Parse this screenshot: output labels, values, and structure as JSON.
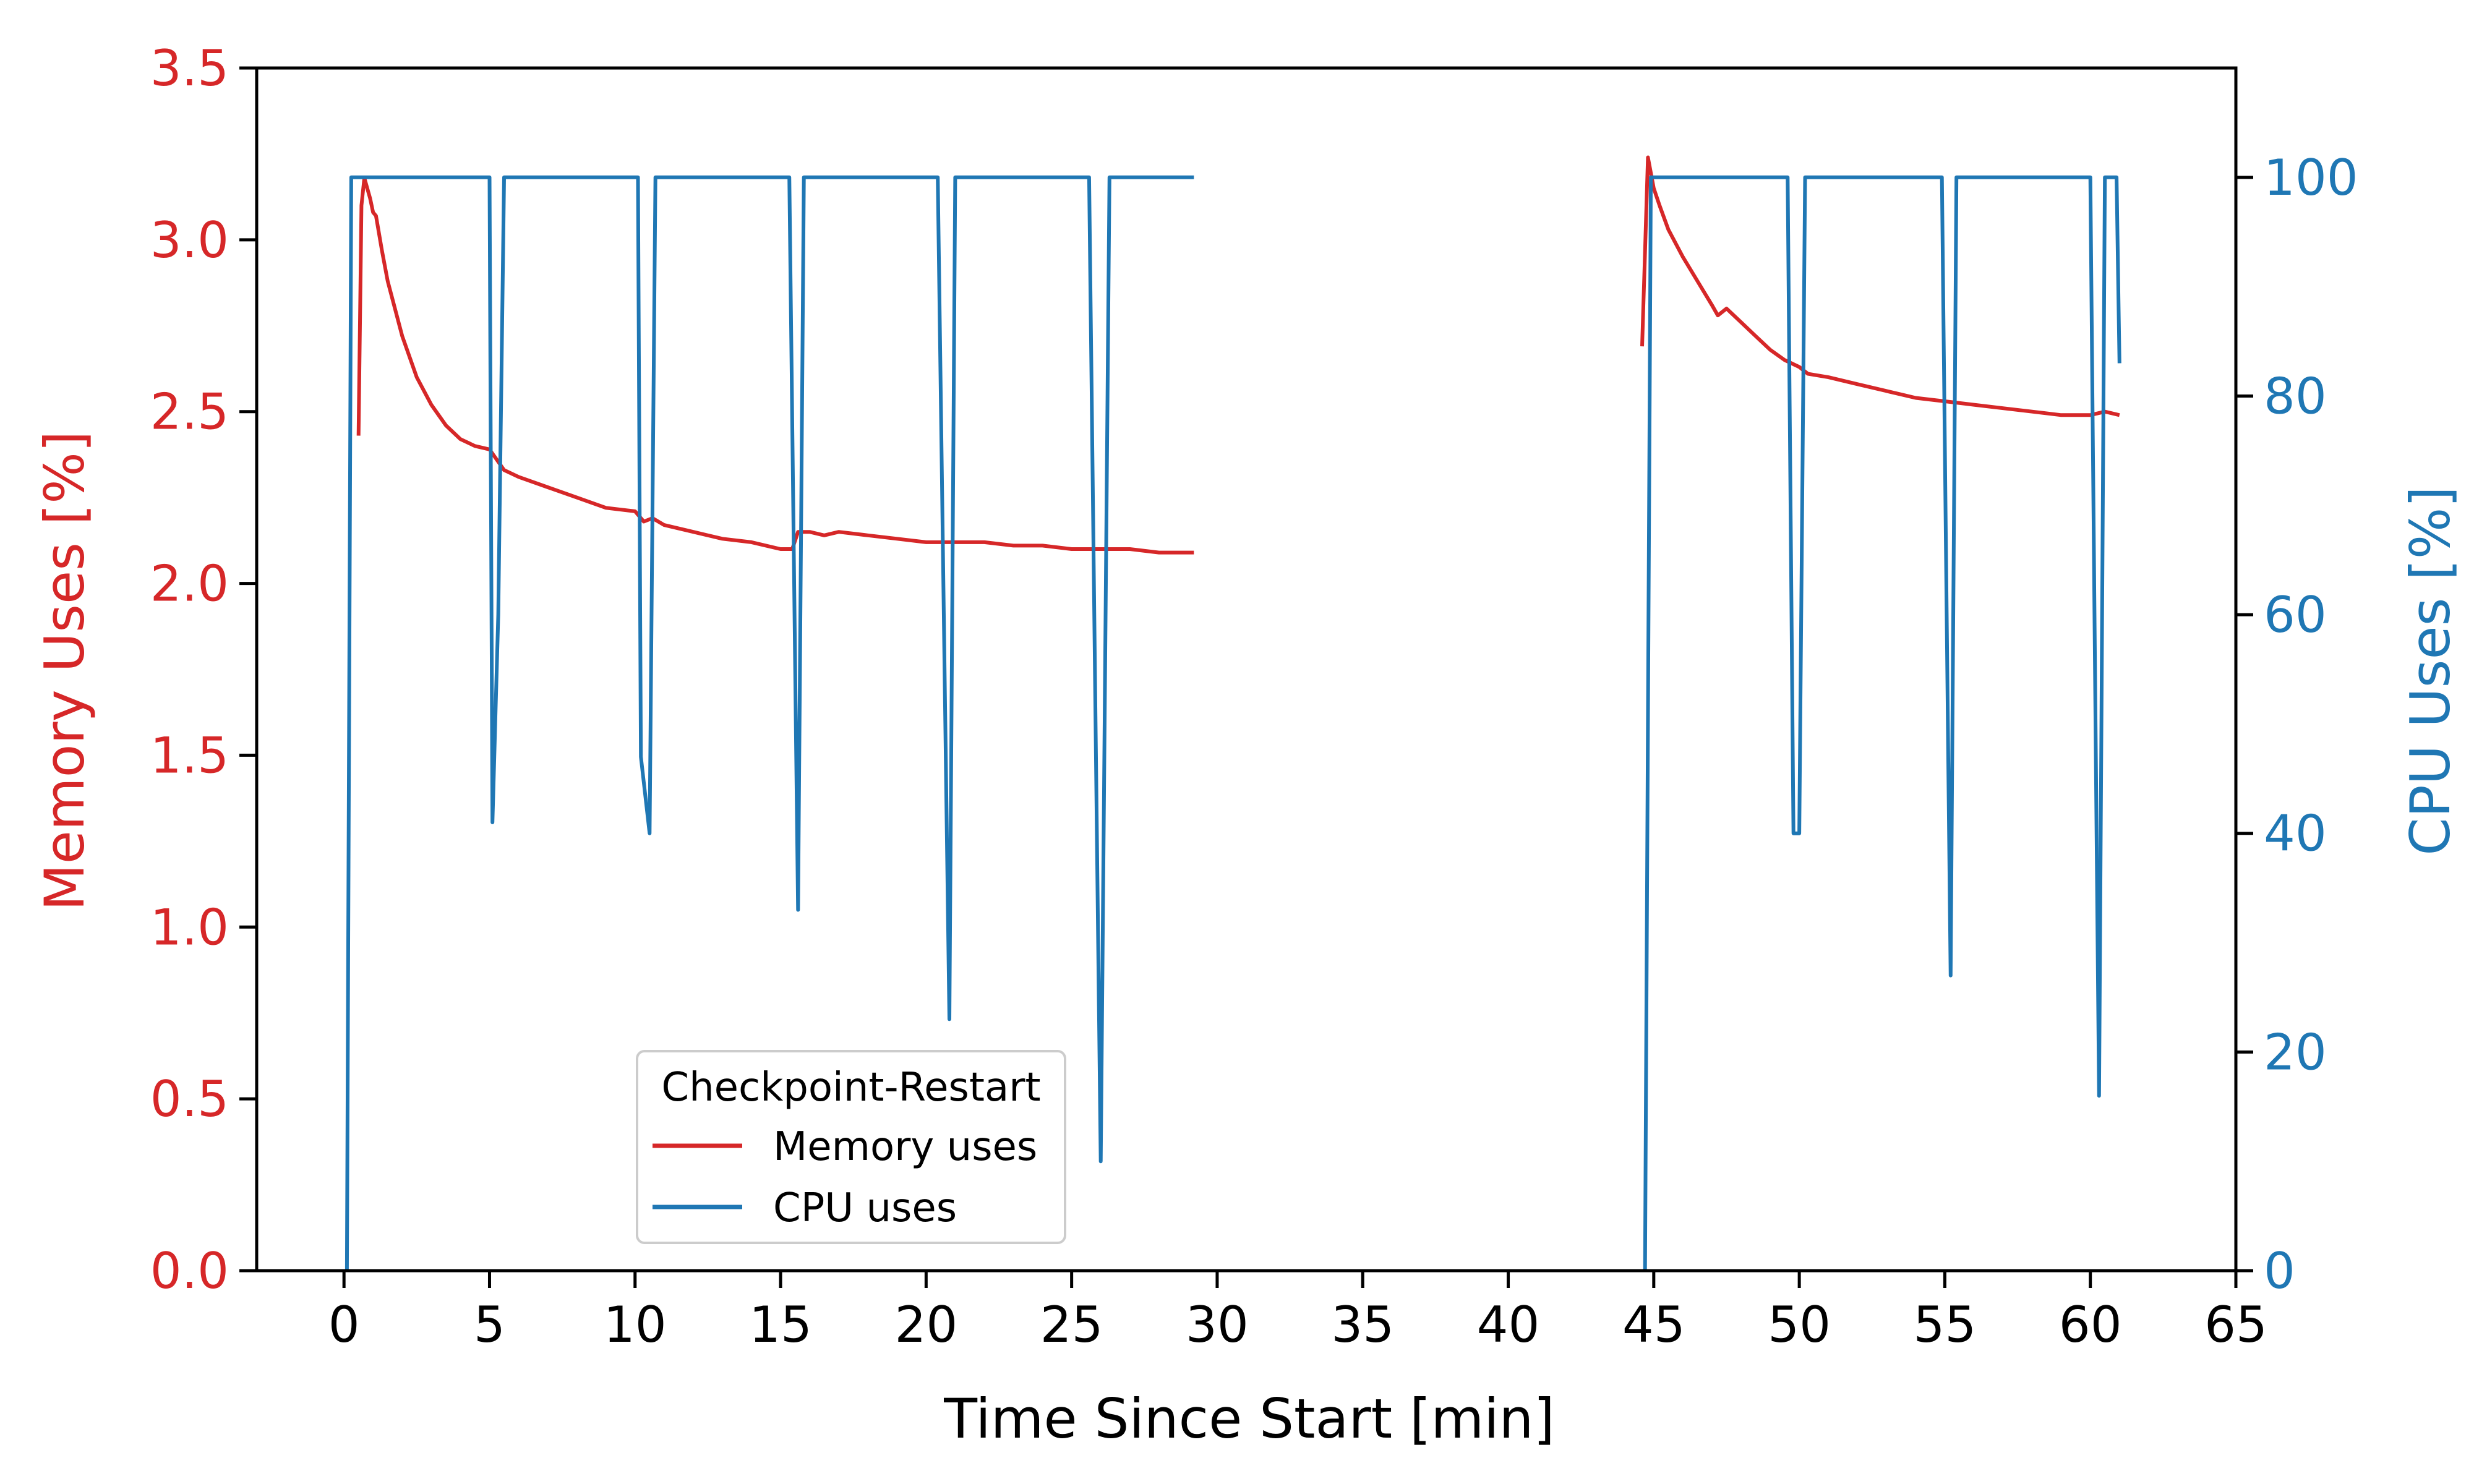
{
  "chart_data": {
    "type": "line",
    "title": "",
    "xlabel": "Time Since Start [min]",
    "ylabel_left": "Memory Uses [%]",
    "ylabel_right": "CPU Uses [%]",
    "xlim": [
      -3,
      65
    ],
    "ylim_left": [
      0,
      3.5
    ],
    "ylim_right": [
      0,
      110
    ],
    "x_ticks": [
      "0",
      "5",
      "10",
      "15",
      "20",
      "25",
      "30",
      "35",
      "40",
      "45",
      "50",
      "55",
      "60",
      "65"
    ],
    "y_left_ticks": [
      "0.0",
      "0.5",
      "1.0",
      "1.5",
      "2.0",
      "2.5",
      "3.0",
      "3.5"
    ],
    "y_right_ticks": [
      "0",
      "20",
      "40",
      "60",
      "80",
      "100"
    ],
    "grid": false,
    "legend": {
      "title": "Checkpoint-Restart",
      "placement": "lower-center-left",
      "entries": [
        "Memory uses",
        "CPU uses"
      ]
    },
    "colors": {
      "memory": "#d62728",
      "cpu": "#1f77b4"
    },
    "series": [
      {
        "name": "Memory uses",
        "axis": "left",
        "color": "#d62728",
        "segments": [
          [
            [
              0.5,
              2.43
            ],
            [
              0.6,
              3.1
            ],
            [
              0.7,
              3.18
            ],
            [
              0.9,
              3.12
            ],
            [
              1.0,
              3.08
            ],
            [
              1.1,
              3.07
            ],
            [
              1.3,
              2.97
            ],
            [
              1.5,
              2.88
            ],
            [
              2.0,
              2.72
            ],
            [
              2.5,
              2.6
            ],
            [
              3.0,
              2.52
            ],
            [
              3.5,
              2.46
            ],
            [
              4.0,
              2.42
            ],
            [
              4.5,
              2.4
            ],
            [
              5.0,
              2.39
            ],
            [
              5.5,
              2.33
            ],
            [
              6.0,
              2.31
            ],
            [
              7.0,
              2.28
            ],
            [
              8.0,
              2.25
            ],
            [
              9.0,
              2.22
            ],
            [
              10.0,
              2.21
            ],
            [
              10.3,
              2.18
            ],
            [
              10.6,
              2.19
            ],
            [
              11.0,
              2.17
            ],
            [
              12.0,
              2.15
            ],
            [
              13.0,
              2.13
            ],
            [
              14.0,
              2.12
            ],
            [
              15.0,
              2.1
            ],
            [
              15.4,
              2.1
            ],
            [
              15.6,
              2.15
            ],
            [
              16.0,
              2.15
            ],
            [
              16.5,
              2.14
            ],
            [
              17.0,
              2.15
            ],
            [
              18.0,
              2.14
            ],
            [
              19.0,
              2.13
            ],
            [
              20.0,
              2.12
            ],
            [
              21.0,
              2.12
            ],
            [
              22.0,
              2.12
            ],
            [
              23.0,
              2.11
            ],
            [
              24.0,
              2.11
            ],
            [
              25.0,
              2.1
            ],
            [
              26.0,
              2.1
            ],
            [
              27.0,
              2.1
            ],
            [
              28.0,
              2.09
            ],
            [
              29.2,
              2.09
            ]
          ],
          [
            [
              44.6,
              2.69
            ],
            [
              44.8,
              3.24
            ],
            [
              45.0,
              3.15
            ],
            [
              45.2,
              3.1
            ],
            [
              45.5,
              3.03
            ],
            [
              46.0,
              2.95
            ],
            [
              46.5,
              2.88
            ],
            [
              47.0,
              2.81
            ],
            [
              47.2,
              2.78
            ],
            [
              47.5,
              2.8
            ],
            [
              48.0,
              2.76
            ],
            [
              48.5,
              2.72
            ],
            [
              49.0,
              2.68
            ],
            [
              49.5,
              2.65
            ],
            [
              50.0,
              2.63
            ],
            [
              50.3,
              2.61
            ],
            [
              51.0,
              2.6
            ],
            [
              52.0,
              2.58
            ],
            [
              53.0,
              2.56
            ],
            [
              54.0,
              2.54
            ],
            [
              55.0,
              2.53
            ],
            [
              56.0,
              2.52
            ],
            [
              57.0,
              2.51
            ],
            [
              58.0,
              2.5
            ],
            [
              59.0,
              2.49
            ],
            [
              60.0,
              2.49
            ],
            [
              60.5,
              2.5
            ],
            [
              61.0,
              2.49
            ]
          ]
        ]
      },
      {
        "name": "CPU uses",
        "axis": "right",
        "color": "#1f77b4",
        "segments": [
          [
            [
              0.1,
              0
            ],
            [
              0.25,
              100
            ],
            [
              0.35,
              100
            ],
            [
              5.0,
              100
            ],
            [
              5.1,
              41
            ],
            [
              5.3,
              60
            ],
            [
              5.5,
              100
            ],
            [
              10.1,
              100
            ],
            [
              10.2,
              47
            ],
            [
              10.5,
              40
            ],
            [
              10.7,
              100
            ],
            [
              15.3,
              100
            ],
            [
              15.6,
              33
            ],
            [
              15.8,
              100
            ],
            [
              20.4,
              100
            ],
            [
              20.8,
              23
            ],
            [
              21.0,
              100
            ],
            [
              25.6,
              100
            ],
            [
              26.0,
              10
            ],
            [
              26.3,
              100
            ],
            [
              29.2,
              100
            ]
          ],
          [
            [
              44.7,
              0
            ],
            [
              44.9,
              100
            ],
            [
              49.6,
              100
            ],
            [
              49.8,
              40
            ],
            [
              50.0,
              40
            ],
            [
              50.2,
              100
            ],
            [
              54.9,
              100
            ],
            [
              55.2,
              27
            ],
            [
              55.4,
              100
            ],
            [
              60.0,
              100
            ],
            [
              60.3,
              16
            ],
            [
              60.5,
              100
            ],
            [
              60.9,
              100
            ],
            [
              61.0,
              83
            ]
          ]
        ]
      }
    ]
  }
}
